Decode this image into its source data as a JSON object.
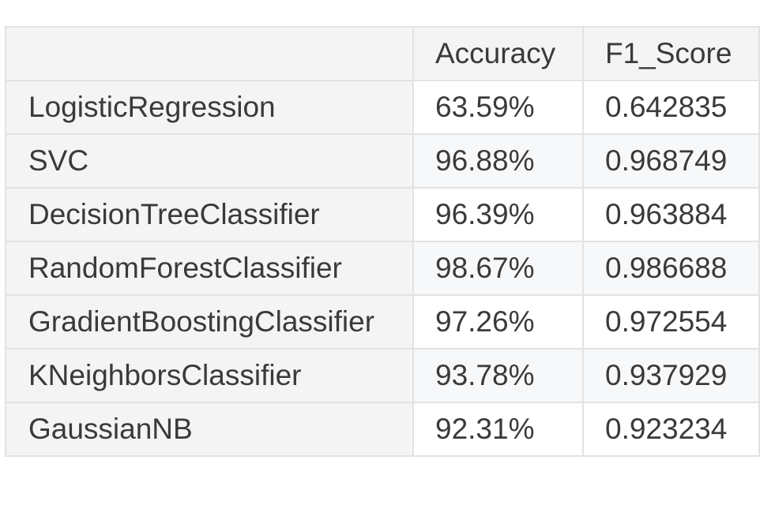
{
  "chart_data": {
    "type": "table",
    "columns": [
      "",
      "Accuracy",
      "F1_Score"
    ],
    "rows": [
      {
        "model": "LogisticRegression",
        "accuracy": "63.59%",
        "f1": "0.642835"
      },
      {
        "model": "SVC",
        "accuracy": "96.88%",
        "f1": "0.968749"
      },
      {
        "model": "DecisionTreeClassifier",
        "accuracy": "96.39%",
        "f1": "0.963884"
      },
      {
        "model": "RandomForestClassifier",
        "accuracy": "98.67%",
        "f1": "0.986688"
      },
      {
        "model": "GradientBoostingClassifier",
        "accuracy": "97.26%",
        "f1": "0.972554"
      },
      {
        "model": "KNeighborsClassifier",
        "accuracy": "93.78%",
        "f1": "0.937929"
      },
      {
        "model": "GaussianNB",
        "accuracy": "92.31%",
        "f1": "0.923234"
      }
    ]
  },
  "colors": {
    "border": "#e2e2e2",
    "header_bg": "#f4f4f4",
    "index_bg": "#f4f4f4",
    "stripe_bg": "#f7f8fa",
    "text": "#3a3a3a"
  }
}
